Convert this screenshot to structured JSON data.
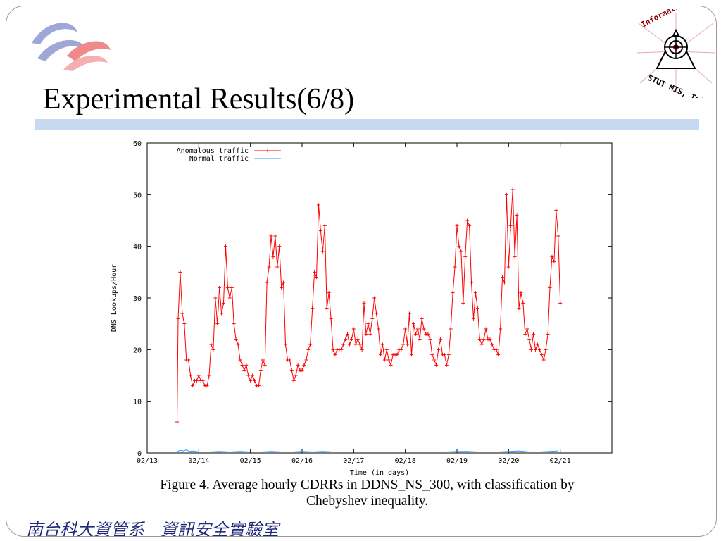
{
  "slide": {
    "title": "Experimental Results(6/8)",
    "caption_line1": "Figure 4. Average hourly CDRRs in DDNS_NS_300, with classification by",
    "caption_line2": "Chebyshev inequality.",
    "footer": "南台科大資管系   資訊安全實驗室",
    "logo_text_top": "Information Security Lab.",
    "logo_text_bottom": "STUT MIS, Taiwan"
  },
  "colors": {
    "anomalous": "#ff0000",
    "normal": "#3399ff",
    "title_bar": "#c6d9f1",
    "footer": "#1f2a7a"
  },
  "chart_data": {
    "type": "line",
    "xlabel": "Time (in days)",
    "ylabel": "DNS Lookups/Hour",
    "xlim": [
      0,
      9
    ],
    "ylim": [
      0,
      60
    ],
    "x_ticks": [
      "02/13",
      "02/14",
      "02/15",
      "02/16",
      "02/17",
      "02/18",
      "02/19",
      "02/20",
      "02/21"
    ],
    "y_ticks": [
      "0",
      "10",
      "20",
      "30",
      "40",
      "50",
      "60"
    ],
    "legend_position": "top-left",
    "series": [
      {
        "name": "Anomalous traffic",
        "color": "#ff0000",
        "points": [
          [
            0.58,
            6
          ],
          [
            0.6,
            26
          ],
          [
            0.64,
            35
          ],
          [
            0.68,
            27
          ],
          [
            0.72,
            25
          ],
          [
            0.76,
            18
          ],
          [
            0.8,
            18
          ],
          [
            0.84,
            15
          ],
          [
            0.88,
            13
          ],
          [
            0.92,
            14
          ],
          [
            0.96,
            14
          ],
          [
            1.0,
            15
          ],
          [
            1.04,
            14
          ],
          [
            1.08,
            14
          ],
          [
            1.12,
            13
          ],
          [
            1.16,
            13
          ],
          [
            1.2,
            15
          ],
          [
            1.24,
            21
          ],
          [
            1.28,
            20
          ],
          [
            1.32,
            30
          ],
          [
            1.36,
            25
          ],
          [
            1.4,
            32
          ],
          [
            1.44,
            27
          ],
          [
            1.48,
            29
          ],
          [
            1.52,
            40
          ],
          [
            1.56,
            32
          ],
          [
            1.6,
            30
          ],
          [
            1.64,
            32
          ],
          [
            1.68,
            25
          ],
          [
            1.72,
            22
          ],
          [
            1.76,
            21
          ],
          [
            1.8,
            18
          ],
          [
            1.84,
            17
          ],
          [
            1.88,
            16
          ],
          [
            1.92,
            17
          ],
          [
            1.96,
            15
          ],
          [
            2.0,
            14
          ],
          [
            2.04,
            15
          ],
          [
            2.08,
            14
          ],
          [
            2.12,
            13
          ],
          [
            2.16,
            13
          ],
          [
            2.2,
            16
          ],
          [
            2.24,
            18
          ],
          [
            2.28,
            17
          ],
          [
            2.32,
            33
          ],
          [
            2.36,
            36
          ],
          [
            2.4,
            42
          ],
          [
            2.44,
            38
          ],
          [
            2.48,
            42
          ],
          [
            2.52,
            36
          ],
          [
            2.56,
            40
          ],
          [
            2.6,
            32
          ],
          [
            2.64,
            33
          ],
          [
            2.68,
            21
          ],
          [
            2.72,
            18
          ],
          [
            2.76,
            18
          ],
          [
            2.8,
            16
          ],
          [
            2.84,
            14
          ],
          [
            2.88,
            15
          ],
          [
            2.92,
            17
          ],
          [
            2.96,
            16
          ],
          [
            3.0,
            16
          ],
          [
            3.04,
            17
          ],
          [
            3.08,
            18
          ],
          [
            3.12,
            20
          ],
          [
            3.16,
            21
          ],
          [
            3.2,
            28
          ],
          [
            3.24,
            35
          ],
          [
            3.28,
            34
          ],
          [
            3.32,
            48
          ],
          [
            3.36,
            43
          ],
          [
            3.4,
            39
          ],
          [
            3.44,
            44
          ],
          [
            3.48,
            28
          ],
          [
            3.52,
            31
          ],
          [
            3.56,
            26
          ],
          [
            3.6,
            20
          ],
          [
            3.64,
            19
          ],
          [
            3.68,
            20
          ],
          [
            3.72,
            20
          ],
          [
            3.76,
            20
          ],
          [
            3.8,
            21
          ],
          [
            3.84,
            22
          ],
          [
            3.88,
            23
          ],
          [
            3.92,
            21
          ],
          [
            3.96,
            22
          ],
          [
            4.0,
            24
          ],
          [
            4.04,
            21
          ],
          [
            4.08,
            22
          ],
          [
            4.12,
            21
          ],
          [
            4.16,
            20
          ],
          [
            4.2,
            29
          ],
          [
            4.24,
            23
          ],
          [
            4.28,
            25
          ],
          [
            4.32,
            23
          ],
          [
            4.36,
            26
          ],
          [
            4.4,
            30
          ],
          [
            4.44,
            27
          ],
          [
            4.48,
            24
          ],
          [
            4.52,
            19
          ],
          [
            4.56,
            21
          ],
          [
            4.6,
            18
          ],
          [
            4.64,
            20
          ],
          [
            4.68,
            18
          ],
          [
            4.72,
            17
          ],
          [
            4.76,
            19
          ],
          [
            4.8,
            19
          ],
          [
            4.84,
            19
          ],
          [
            4.88,
            20
          ],
          [
            4.92,
            20
          ],
          [
            4.96,
            21
          ],
          [
            5.0,
            24
          ],
          [
            5.04,
            21
          ],
          [
            5.08,
            27
          ],
          [
            5.12,
            19
          ],
          [
            5.16,
            25
          ],
          [
            5.2,
            23
          ],
          [
            5.24,
            24
          ],
          [
            5.28,
            22
          ],
          [
            5.32,
            26
          ],
          [
            5.36,
            24
          ],
          [
            5.4,
            23
          ],
          [
            5.44,
            23
          ],
          [
            5.48,
            22
          ],
          [
            5.52,
            19
          ],
          [
            5.56,
            18
          ],
          [
            5.6,
            17
          ],
          [
            5.64,
            20
          ],
          [
            5.68,
            22
          ],
          [
            5.72,
            19
          ],
          [
            5.76,
            19
          ],
          [
            5.8,
            17
          ],
          [
            5.84,
            19
          ],
          [
            5.88,
            24
          ],
          [
            5.92,
            31
          ],
          [
            5.96,
            36
          ],
          [
            6.0,
            44
          ],
          [
            6.04,
            40
          ],
          [
            6.08,
            39
          ],
          [
            6.12,
            29
          ],
          [
            6.16,
            38
          ],
          [
            6.2,
            45
          ],
          [
            6.24,
            44
          ],
          [
            6.28,
            33
          ],
          [
            6.32,
            26
          ],
          [
            6.36,
            31
          ],
          [
            6.4,
            28
          ],
          [
            6.44,
            22
          ],
          [
            6.48,
            21
          ],
          [
            6.52,
            22
          ],
          [
            6.56,
            24
          ],
          [
            6.6,
            22
          ],
          [
            6.64,
            22
          ],
          [
            6.68,
            21
          ],
          [
            6.72,
            20
          ],
          [
            6.76,
            20
          ],
          [
            6.8,
            19
          ],
          [
            6.84,
            24
          ],
          [
            6.88,
            34
          ],
          [
            6.92,
            33
          ],
          [
            6.96,
            50
          ],
          [
            7.0,
            36
          ],
          [
            7.04,
            44
          ],
          [
            7.08,
            51
          ],
          [
            7.12,
            38
          ],
          [
            7.16,
            46
          ],
          [
            7.2,
            28
          ],
          [
            7.24,
            31
          ],
          [
            7.28,
            29
          ],
          [
            7.32,
            23
          ],
          [
            7.36,
            24
          ],
          [
            7.4,
            22
          ],
          [
            7.44,
            20
          ],
          [
            7.48,
            23
          ],
          [
            7.52,
            20
          ],
          [
            7.56,
            21
          ],
          [
            7.6,
            20
          ],
          [
            7.64,
            19
          ],
          [
            7.68,
            18
          ],
          [
            7.72,
            20
          ],
          [
            7.76,
            23
          ],
          [
            7.8,
            32
          ],
          [
            7.84,
            38
          ],
          [
            7.88,
            37
          ],
          [
            7.92,
            47
          ],
          [
            7.96,
            42
          ],
          [
            8.0,
            29
          ]
        ]
      },
      {
        "name": "Normal traffic",
        "color": "#3399ff",
        "points": [
          [
            0.58,
            0.3
          ],
          [
            0.64,
            0.5
          ],
          [
            0.7,
            0.4
          ],
          [
            0.76,
            0.6
          ],
          [
            0.82,
            0.3
          ],
          [
            0.9,
            0.4
          ],
          [
            1.0,
            0.2
          ],
          [
            1.2,
            0.2
          ],
          [
            1.4,
            0.3
          ],
          [
            1.6,
            0.2
          ],
          [
            1.8,
            0.3
          ],
          [
            2.0,
            0.2
          ],
          [
            2.2,
            0.2
          ],
          [
            2.4,
            0.3
          ],
          [
            2.6,
            0.2
          ],
          [
            2.8,
            0.2
          ],
          [
            3.0,
            0.3
          ],
          [
            3.2,
            0.2
          ],
          [
            3.4,
            0.3
          ],
          [
            3.6,
            0.2
          ],
          [
            3.8,
            0.2
          ],
          [
            4.0,
            0.2
          ],
          [
            4.2,
            0.2
          ],
          [
            4.4,
            0.2
          ],
          [
            4.6,
            0.2
          ],
          [
            4.8,
            0.2
          ],
          [
            5.0,
            0.2
          ],
          [
            5.2,
            0.2
          ],
          [
            5.4,
            0.2
          ],
          [
            5.6,
            0.2
          ],
          [
            5.8,
            0.2
          ],
          [
            6.0,
            0.3
          ],
          [
            6.2,
            0.3
          ],
          [
            6.4,
            0.2
          ],
          [
            6.6,
            0.2
          ],
          [
            6.8,
            0.2
          ],
          [
            7.0,
            0.3
          ],
          [
            7.2,
            0.4
          ],
          [
            7.4,
            0.2
          ],
          [
            7.6,
            0.2
          ],
          [
            7.8,
            0.3
          ],
          [
            7.96,
            0.4
          ]
        ]
      }
    ]
  }
}
